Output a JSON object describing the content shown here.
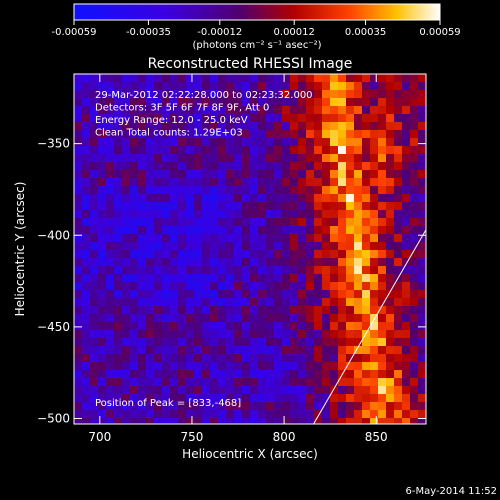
{
  "chart_data": {
    "type": "heatmap",
    "title": "Reconstructed RHESSI Image",
    "xlabel": "Heliocentric X (arcsec)",
    "ylabel": "Heliocentric Y (arcsec)",
    "xlim": [
      686,
      877
    ],
    "ylim": [
      -503,
      -312
    ],
    "x_ticks": [
      700,
      750,
      800,
      850
    ],
    "y_ticks": [
      -350,
      -400,
      -450,
      -500
    ],
    "colorbar": {
      "range": [
        -0.00059,
        0.00059
      ],
      "tick_values": [
        -0.00059,
        -0.00035,
        -0.00012,
        0.00012,
        0.00035,
        0.00059
      ],
      "tick_labels": [
        "-0.00059",
        "-0.00035",
        "-0.00012",
        "0.00012",
        "0.00035",
        "0.00059"
      ],
      "unit_label": "(photons cm⁻² s⁻¹ asec⁻²)"
    },
    "annotations": [
      "29-Mar-2012 02:22:28.000 to 02:23:32.000",
      "Detectors: 3F 5F 6F 7F 8F 9F, Att 0",
      "Energy Range: 12.0 - 25.0 keV",
      "Clean     Total counts: 1.29E+03"
    ],
    "peak_label": "Position of Peak = [833,-468]",
    "limb_line": {
      "points": [
        [
          816,
          -503
        ],
        [
          877,
          -397
        ]
      ]
    },
    "timestamp": "6-May-2014 11:52",
    "grid": false
  }
}
